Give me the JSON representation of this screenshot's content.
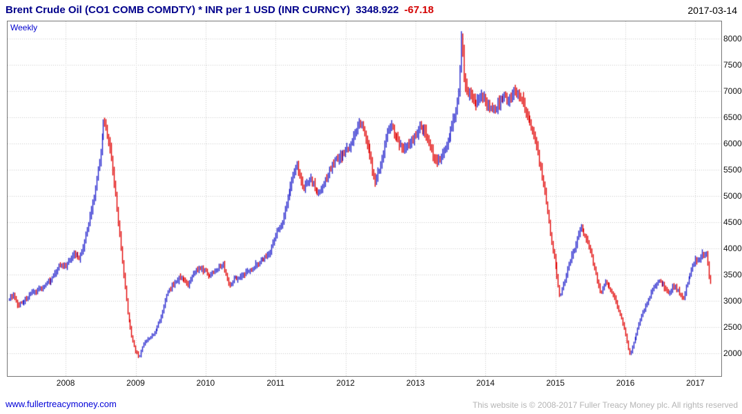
{
  "header": {
    "title": "Brent Crude Oil  (CO1 COMB COMDTY) * INR per 1 USD (INR CURNCY)",
    "last_price": "3348.922",
    "change": "-67.18",
    "date": "2017-03-14"
  },
  "plot": {
    "frequency_label": "Weekly"
  },
  "footer": {
    "link": "www.fullertreacymoney.com",
    "copyright": "This website is © 2008-2017 Fuller Treacy Money plc. All rights reserved"
  },
  "chart_data": {
    "type": "bar",
    "subtype": "weekly-ohlc-range-bars",
    "title": "Brent Crude Oil (CO1 COMB COMDTY) * INR per 1 USD (INR CURNCY)",
    "xlabel": "",
    "ylabel": "",
    "frequency": "Weekly",
    "grid": true,
    "ylim": [
      1570,
      8330
    ],
    "y_ticks": [
      2000,
      2500,
      3000,
      3500,
      4000,
      4500,
      5000,
      5500,
      6000,
      6500,
      7000,
      7500,
      8000
    ],
    "x_ticks": [
      2008,
      2009,
      2010,
      2011,
      2012,
      2013,
      2014,
      2015,
      2016,
      2017
    ],
    "x_range": [
      2007.17,
      2017.37
    ],
    "data_start": 2007.19,
    "data_end": 2017.2,
    "last": {
      "date": "2017-03-14",
      "close": 3348.922,
      "change": -67.18
    },
    "colors": {
      "up": "#2222cc",
      "down": "#e00000",
      "grid": "#c8c8c8",
      "frame": "#767676"
    },
    "series_anchors": [
      [
        2007.19,
        3050
      ],
      [
        2007.25,
        3120
      ],
      [
        2007.3,
        2920
      ],
      [
        2007.4,
        3000
      ],
      [
        2007.5,
        3120
      ],
      [
        2007.6,
        3220
      ],
      [
        2007.7,
        3300
      ],
      [
        2007.8,
        3420
      ],
      [
        2007.9,
        3680
      ],
      [
        2008.0,
        3650
      ],
      [
        2008.05,
        3800
      ],
      [
        2008.12,
        3920
      ],
      [
        2008.2,
        3820
      ],
      [
        2008.3,
        4300
      ],
      [
        2008.4,
        5000
      ],
      [
        2008.5,
        5900
      ],
      [
        2008.54,
        6420
      ],
      [
        2008.6,
        6150
      ],
      [
        2008.65,
        5700
      ],
      [
        2008.72,
        4900
      ],
      [
        2008.8,
        3800
      ],
      [
        2008.88,
        2800
      ],
      [
        2008.95,
        2250
      ],
      [
        2009.0,
        2050
      ],
      [
        2009.05,
        1920
      ],
      [
        2009.1,
        2150
      ],
      [
        2009.15,
        2250
      ],
      [
        2009.25,
        2350
      ],
      [
        2009.35,
        2650
      ],
      [
        2009.45,
        3150
      ],
      [
        2009.55,
        3350
      ],
      [
        2009.65,
        3480
      ],
      [
        2009.75,
        3280
      ],
      [
        2009.85,
        3600
      ],
      [
        2009.95,
        3620
      ],
      [
        2010.05,
        3480
      ],
      [
        2010.15,
        3620
      ],
      [
        2010.25,
        3700
      ],
      [
        2010.33,
        3280
      ],
      [
        2010.4,
        3420
      ],
      [
        2010.5,
        3480
      ],
      [
        2010.6,
        3550
      ],
      [
        2010.7,
        3680
      ],
      [
        2010.8,
        3780
      ],
      [
        2010.9,
        3900
      ],
      [
        2011.0,
        4250
      ],
      [
        2011.1,
        4550
      ],
      [
        2011.2,
        5150
      ],
      [
        2011.3,
        5580
      ],
      [
        2011.4,
        5150
      ],
      [
        2011.5,
        5350
      ],
      [
        2011.6,
        5050
      ],
      [
        2011.7,
        5250
      ],
      [
        2011.8,
        5600
      ],
      [
        2011.9,
        5750
      ],
      [
        2012.0,
        5850
      ],
      [
        2012.1,
        6050
      ],
      [
        2012.18,
        6380
      ],
      [
        2012.25,
        6300
      ],
      [
        2012.33,
        5850
      ],
      [
        2012.42,
        5250
      ],
      [
        2012.5,
        5600
      ],
      [
        2012.58,
        6150
      ],
      [
        2012.65,
        6350
      ],
      [
        2012.72,
        6100
      ],
      [
        2012.8,
        5900
      ],
      [
        2012.9,
        6000
      ],
      [
        2013.0,
        6150
      ],
      [
        2013.08,
        6350
      ],
      [
        2013.15,
        6150
      ],
      [
        2013.25,
        5750
      ],
      [
        2013.32,
        5650
      ],
      [
        2013.42,
        5900
      ],
      [
        2013.5,
        6250
      ],
      [
        2013.57,
        6600
      ],
      [
        2013.62,
        7100
      ],
      [
        2013.655,
        8100
      ],
      [
        2013.69,
        7300
      ],
      [
        2013.73,
        6950
      ],
      [
        2013.78,
        7050
      ],
      [
        2013.85,
        6750
      ],
      [
        2013.92,
        6900
      ],
      [
        2014.0,
        6850
      ],
      [
        2014.08,
        6600
      ],
      [
        2014.17,
        6750
      ],
      [
        2014.25,
        6900
      ],
      [
        2014.33,
        6800
      ],
      [
        2014.42,
        7000
      ],
      [
        2014.5,
        6850
      ],
      [
        2014.58,
        6600
      ],
      [
        2014.67,
        6250
      ],
      [
        2014.75,
        5800
      ],
      [
        2014.83,
        5200
      ],
      [
        2014.92,
        4300
      ],
      [
        2015.0,
        3650
      ],
      [
        2015.06,
        3050
      ],
      [
        2015.12,
        3350
      ],
      [
        2015.2,
        3750
      ],
      [
        2015.3,
        4150
      ],
      [
        2015.36,
        4400
      ],
      [
        2015.42,
        4250
      ],
      [
        2015.5,
        3950
      ],
      [
        2015.58,
        3450
      ],
      [
        2015.64,
        3150
      ],
      [
        2015.7,
        3350
      ],
      [
        2015.78,
        3250
      ],
      [
        2015.85,
        3050
      ],
      [
        2015.92,
        2750
      ],
      [
        2016.0,
        2350
      ],
      [
        2016.06,
        1950
      ],
      [
        2016.12,
        2250
      ],
      [
        2016.2,
        2600
      ],
      [
        2016.3,
        2950
      ],
      [
        2016.4,
        3250
      ],
      [
        2016.47,
        3380
      ],
      [
        2016.55,
        3280
      ],
      [
        2016.62,
        3120
      ],
      [
        2016.68,
        3320
      ],
      [
        2016.75,
        3180
      ],
      [
        2016.82,
        3050
      ],
      [
        2016.88,
        3350
      ],
      [
        2016.94,
        3600
      ],
      [
        2017.0,
        3800
      ],
      [
        2017.05,
        3780
      ],
      [
        2017.1,
        3880
      ],
      [
        2017.15,
        3920
      ],
      [
        2017.2,
        3348.922
      ]
    ]
  }
}
